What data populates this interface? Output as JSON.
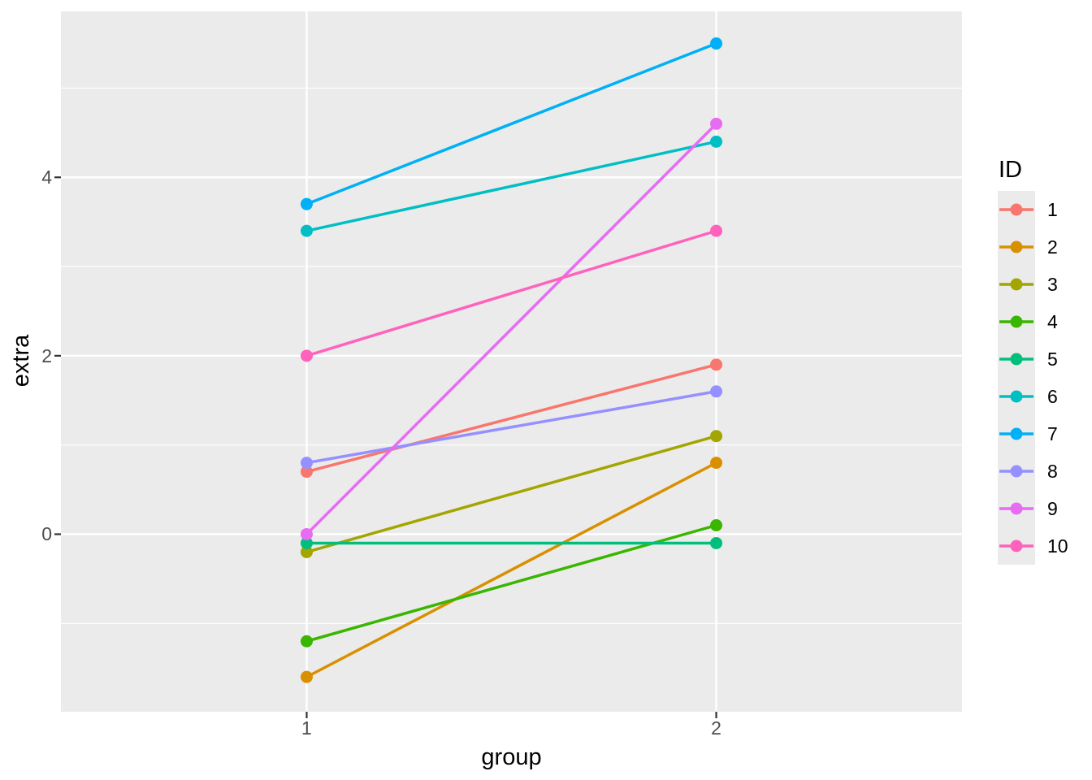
{
  "chart_data": {
    "type": "line",
    "title": "",
    "xlabel": "group",
    "ylabel": "extra",
    "legend_title": "ID",
    "legend_position": "right",
    "x_categories": [
      "1",
      "2"
    ],
    "series": [
      {
        "name": "1",
        "color": "#F8766D",
        "values": [
          0.7,
          1.9
        ]
      },
      {
        "name": "2",
        "color": "#D89000",
        "values": [
          -1.6,
          0.8
        ]
      },
      {
        "name": "3",
        "color": "#A3A500",
        "values": [
          -0.2,
          1.1
        ]
      },
      {
        "name": "4",
        "color": "#39B600",
        "values": [
          -1.2,
          0.1
        ]
      },
      {
        "name": "5",
        "color": "#00BF7D",
        "values": [
          -0.1,
          -0.1
        ]
      },
      {
        "name": "6",
        "color": "#00BFC4",
        "values": [
          3.4,
          4.4
        ]
      },
      {
        "name": "7",
        "color": "#00B0F6",
        "values": [
          3.7,
          5.5
        ]
      },
      {
        "name": "8",
        "color": "#9590FF",
        "values": [
          0.8,
          1.6
        ]
      },
      {
        "name": "9",
        "color": "#E76BF3",
        "values": [
          0.0,
          4.6
        ]
      },
      {
        "name": "10",
        "color": "#FF62BC",
        "values": [
          2.0,
          3.4
        ]
      }
    ],
    "yticks": [
      0,
      2,
      4
    ],
    "ytick_labels": [
      "0",
      "2",
      "4"
    ],
    "yticks_minor": [
      -1,
      1,
      3,
      5
    ],
    "ylim": [
      -1.99,
      5.86
    ],
    "xlim": [
      0.4,
      2.6
    ],
    "grid": "major-and-minor-white",
    "panel_bg": "#EBEBEB",
    "grid_color": "#FFFFFF",
    "tick_label_color": "#4D4D4D",
    "tick_mark_color": "#333333",
    "legend_key_bg": "#EBEBEB"
  }
}
